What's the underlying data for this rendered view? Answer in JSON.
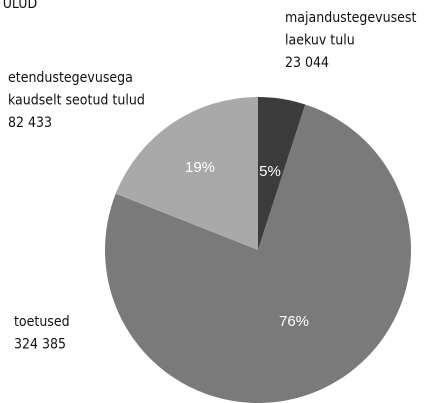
{
  "chart_data": {
    "type": "pie",
    "title": "TULUD",
    "categories": [
      [
        "majandustegevusest",
        "laekuv tulu"
      ],
      [
        "toetused"
      ],
      [
        "etendustegevusega",
        "kaudselt seotud tulud"
      ]
    ],
    "amount_labels": [
      "23 044",
      "324 385",
      "82 433"
    ],
    "values": [
      5,
      76,
      19
    ],
    "value_labels": [
      "5%",
      "76%",
      "19%"
    ],
    "colors": [
      "#3c3c3c",
      "#7a7a7a",
      "#a9a9a9"
    ]
  }
}
